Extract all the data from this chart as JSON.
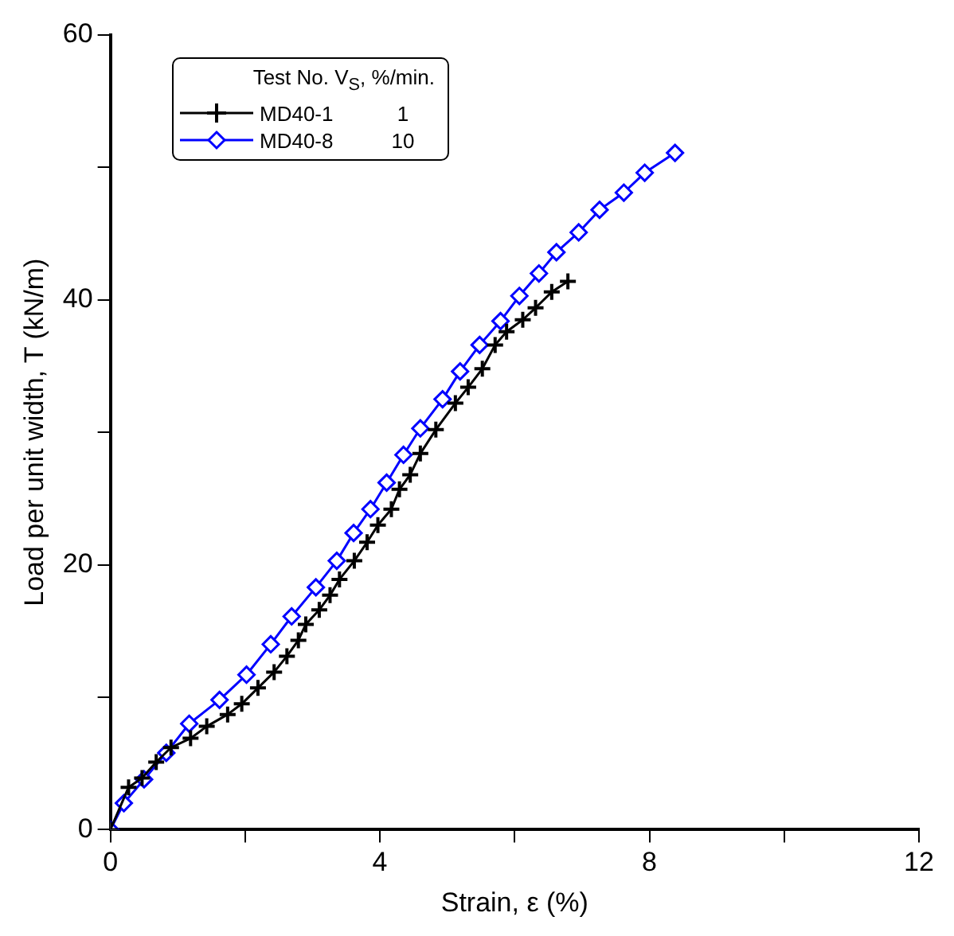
{
  "chart_data": {
    "type": "line",
    "xlabel": "Strain, ε (%)",
    "ylabel": "Load per unit width, T (kN/m)",
    "legend_title": "Test No.  V$_{S}$, %/min.",
    "annotations": [
      "1",
      "10"
    ],
    "xlim": [
      0,
      12
    ],
    "xticks": [
      0,
      {
        "value": 2,
        "label": null
      },
      4,
      {
        "value": 6,
        "label": null
      },
      8,
      {
        "value": 10,
        "label": null
      },
      12
    ],
    "ylim": [
      0,
      60
    ],
    "yticks": [
      0,
      {
        "value": 10,
        "label": null
      },
      20,
      {
        "value": 30,
        "label": null
      },
      40,
      {
        "value": 50,
        "label": null
      },
      60
    ],
    "grid": false,
    "legend": "top left",
    "line_style": "solid",
    "series": [
      {
        "name": "MD40-1",
        "color": "#000000",
        "marker": "cross",
        "x": [
          0,
          0.27,
          0.47,
          0.68,
          0.9,
          1.19,
          1.43,
          1.74,
          1.95,
          2.19,
          2.43,
          2.62,
          2.79,
          2.9,
          3.1,
          3.26,
          3.4,
          3.62,
          3.81,
          3.97,
          4.17,
          4.29,
          4.45,
          4.6,
          4.83,
          5.12,
          5.31,
          5.52,
          5.71,
          5.88,
          6.12,
          6.31,
          6.55,
          6.79
        ],
        "values": [
          0,
          3.2,
          3.9,
          5.1,
          6.2,
          6.9,
          7.8,
          8.7,
          9.5,
          10.7,
          11.9,
          13.1,
          14.3,
          15.5,
          16.6,
          17.7,
          18.9,
          20.3,
          21.7,
          23,
          24.2,
          25.7,
          26.8,
          28.4,
          30.2,
          32.2,
          33.4,
          34.8,
          36.6,
          37.6,
          38.5,
          39.4,
          40.6,
          41.4
        ]
      },
      {
        "name": "MD40-8",
        "color": "#0000ff",
        "marker": "diamond",
        "x": [
          0,
          0.2,
          0.5,
          0.83,
          1.17,
          1.62,
          2.02,
          2.38,
          2.69,
          3.05,
          3.36,
          3.61,
          3.86,
          4.1,
          4.35,
          4.6,
          4.93,
          5.19,
          5.48,
          5.79,
          6.07,
          6.36,
          6.62,
          6.95,
          7.26,
          7.62,
          7.93,
          8.38
        ],
        "values": [
          0,
          2,
          3.8,
          5.8,
          8,
          9.8,
          11.7,
          14,
          16.1,
          18.3,
          20.3,
          22.4,
          24.2,
          26.2,
          28.3,
          30.3,
          32.5,
          34.6,
          36.6,
          38.4,
          40.3,
          42,
          43.6,
          45.1,
          46.8,
          48.1,
          49.6,
          51.1
        ]
      }
    ]
  }
}
